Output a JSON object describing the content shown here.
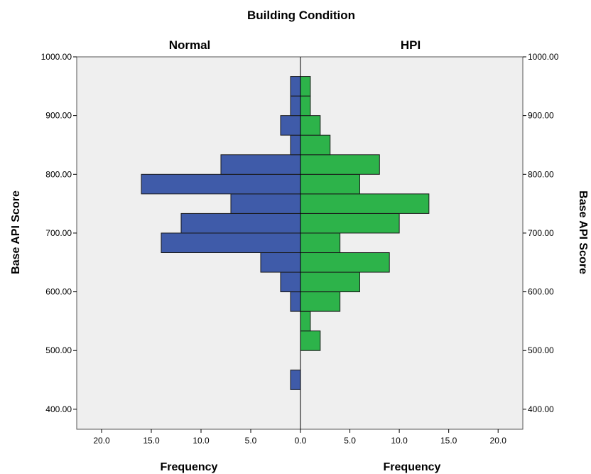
{
  "chart_data": {
    "type": "bar",
    "title": "Building Condition",
    "panels": [
      {
        "name": "Normal",
        "xlabel": "Frequency"
      },
      {
        "name": "HPI",
        "xlabel": "Frequency"
      }
    ],
    "ylabel": "Base API Score",
    "ylim": [
      366,
      1000
    ],
    "yticks": [
      "400.00",
      "500.00",
      "600.00",
      "700.00",
      "800.00",
      "900.00",
      "1000.00"
    ],
    "xlim": [
      0,
      22.5
    ],
    "xticks_left": [
      "20.0",
      "15.0",
      "10.0",
      "5.0",
      "0.0"
    ],
    "xticks_right": [
      "0.0",
      "5.0",
      "10.0",
      "15.0",
      "20.0"
    ],
    "bin_width": 33.33,
    "bins_lower_edge": [
      433.33,
      466.67,
      500,
      533.33,
      566.67,
      600,
      633.33,
      666.67,
      700,
      733.33,
      766.67,
      800,
      833.33,
      866.67,
      900,
      933.33
    ],
    "series": [
      {
        "name": "Normal",
        "values": [
          1,
          0,
          0,
          0,
          1,
          2,
          4,
          14,
          12,
          7,
          16,
          8,
          1,
          2,
          1,
          1
        ]
      },
      {
        "name": "HPI",
        "values": [
          0,
          0,
          2,
          1,
          4,
          6,
          9,
          4,
          10,
          13,
          6,
          8,
          3,
          2,
          1,
          1
        ]
      }
    ],
    "colors": {
      "Normal": "#3f5ba9",
      "HPI": "#2db34a",
      "plot_bg": "#efefef"
    },
    "grid": false
  }
}
